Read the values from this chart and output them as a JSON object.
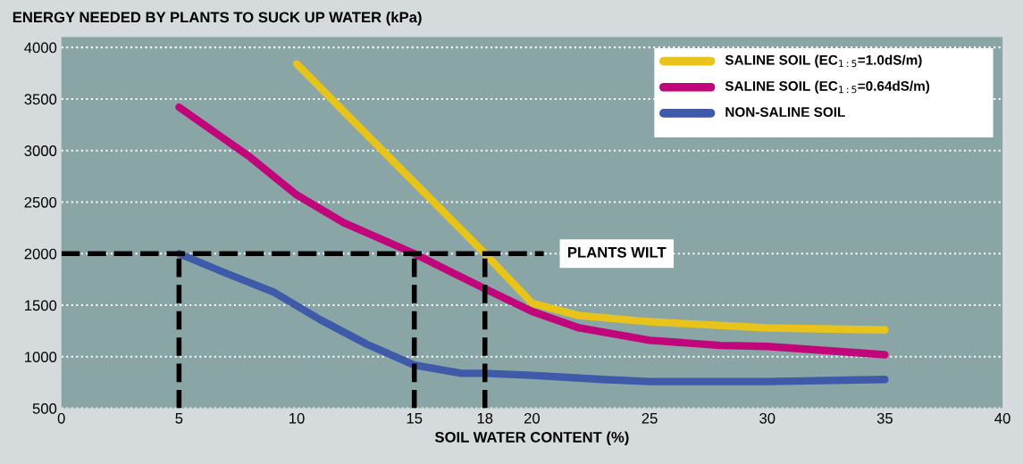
{
  "chart_data": {
    "type": "line",
    "ylabel": "ENERGY NEEDED BY PLANTS TO SUCK UP WATER (kPa)",
    "xlabel": "SOIL WATER CONTENT (%)",
    "xlim": [
      0,
      40
    ],
    "xticks": [
      0,
      5,
      10,
      15,
      18,
      20,
      25,
      30,
      35,
      40
    ],
    "ylim": [
      500,
      4100
    ],
    "yticks": [
      500,
      1000,
      1500,
      2000,
      2500,
      3000,
      3500,
      4000
    ],
    "grid": "y",
    "legend": "top right",
    "line_style": "solid",
    "marker": "none",
    "series": [
      {
        "name": "SALINE SOIL (EC$_{1:5}$=1.0dS/m)",
        "color": "#e8c31a",
        "x": [
          10,
          12,
          15,
          18,
          20,
          22,
          25,
          30,
          35
        ],
        "values": [
          3840,
          3380,
          2690,
          2000,
          1520,
          1400,
          1340,
          1280,
          1260
        ]
      },
      {
        "name": "SALINE SOIL (EC$_{1:5}$=0.64dS/m)",
        "color": "#c0067a",
        "x": [
          5,
          8,
          10,
          12,
          15,
          18,
          20,
          22,
          25,
          28,
          30,
          35
        ],
        "values": [
          3420,
          2940,
          2570,
          2300,
          2000,
          1660,
          1440,
          1280,
          1160,
          1110,
          1100,
          1020
        ]
      },
      {
        "name": "NON-SALINE SOIL",
        "color": "#3f5aa8",
        "x": [
          5,
          7,
          9,
          11,
          13,
          15,
          17,
          18,
          20,
          23,
          25,
          30,
          35
        ],
        "values": [
          2000,
          1810,
          1630,
          1360,
          1120,
          920,
          840,
          840,
          820,
          780,
          760,
          760,
          780
        ]
      }
    ],
    "ref_lines": [
      {
        "axis": "y",
        "value": 2000,
        "label": "PLANTS WILT",
        "color": "#000000",
        "line_style": "dashed"
      },
      {
        "axis": "x",
        "value": 5,
        "color": "#000000",
        "line_style": "dashed"
      },
      {
        "axis": "x",
        "value": 15,
        "color": "#000000",
        "line_style": "dashed"
      },
      {
        "axis": "x",
        "value": 18,
        "color": "#000000",
        "line_style": "dashed"
      }
    ]
  }
}
